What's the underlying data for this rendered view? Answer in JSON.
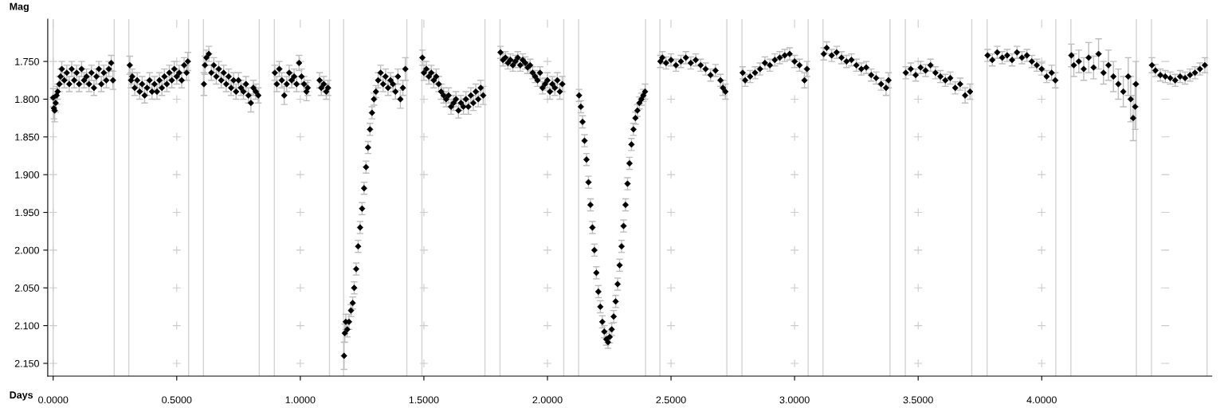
{
  "chart_data": {
    "type": "scatter",
    "xlabel": "Days",
    "ylabel": "Mag",
    "xlim": [
      -0.022,
      4.688
    ],
    "ylim": [
      2.167,
      1.694
    ],
    "xticks": [
      {
        "value": 0,
        "label": "0.0000"
      },
      {
        "value": 0.5,
        "label": "0.5000"
      },
      {
        "value": 1,
        "label": "1.0000"
      },
      {
        "value": 1.5,
        "label": "1.5000"
      },
      {
        "value": 2,
        "label": "2.0000"
      },
      {
        "value": 2.5,
        "label": "2.5000"
      },
      {
        "value": 3,
        "label": "3.0000"
      },
      {
        "value": 3.5,
        "label": "3.5000"
      },
      {
        "value": 4,
        "label": "4.0000"
      }
    ],
    "yticks": [
      {
        "value": 1.75,
        "label": "1.750"
      },
      {
        "value": 1.8,
        "label": "1.800"
      },
      {
        "value": 1.85,
        "label": "1.850"
      },
      {
        "value": 1.9,
        "label": "1.900"
      },
      {
        "value": 1.95,
        "label": "1.950"
      },
      {
        "value": 2.0,
        "label": "2.000"
      },
      {
        "value": 2.05,
        "label": "2.050"
      },
      {
        "value": 2.1,
        "label": "2.100"
      },
      {
        "value": 2.15,
        "label": "2.150"
      }
    ],
    "grid": true,
    "marker": "diamond",
    "ref_lines": [
      {
        "axis": "x",
        "value": 0.0,
        "color": "#d3d3d3"
      },
      {
        "axis": "x",
        "value": 0.247,
        "color": "#d3d3d3"
      },
      {
        "axis": "x",
        "value": 0.306,
        "color": "#d3d3d3"
      },
      {
        "axis": "x",
        "value": 0.548,
        "color": "#d3d3d3"
      },
      {
        "axis": "x",
        "value": 0.608,
        "color": "#d3d3d3"
      },
      {
        "axis": "x",
        "value": 0.834,
        "color": "#d3d3d3"
      },
      {
        "axis": "x",
        "value": 0.895,
        "color": "#d3d3d3"
      },
      {
        "axis": "x",
        "value": 1.118,
        "color": "#d3d3d3"
      },
      {
        "axis": "x",
        "value": 1.175,
        "color": "#d3d3d3"
      },
      {
        "axis": "x",
        "value": 1.431,
        "color": "#d3d3d3"
      },
      {
        "axis": "x",
        "value": 1.492,
        "color": "#d3d3d3"
      },
      {
        "axis": "x",
        "value": 1.747,
        "color": "#d3d3d3"
      },
      {
        "axis": "x",
        "value": 1.808,
        "color": "#d3d3d3"
      },
      {
        "axis": "x",
        "value": 2.066,
        "color": "#d3d3d3"
      },
      {
        "axis": "x",
        "value": 2.126,
        "color": "#d3d3d3"
      },
      {
        "axis": "x",
        "value": 2.397,
        "color": "#d3d3d3"
      },
      {
        "axis": "x",
        "value": 2.455,
        "color": "#d3d3d3"
      },
      {
        "axis": "x",
        "value": 2.726,
        "color": "#d3d3d3"
      },
      {
        "axis": "x",
        "value": 2.787,
        "color": "#d3d3d3"
      },
      {
        "axis": "x",
        "value": 3.055,
        "color": "#d3d3d3"
      },
      {
        "axis": "x",
        "value": 3.115,
        "color": "#d3d3d3"
      },
      {
        "axis": "x",
        "value": 3.386,
        "color": "#d3d3d3"
      },
      {
        "axis": "x",
        "value": 3.448,
        "color": "#d3d3d3"
      },
      {
        "axis": "x",
        "value": 3.717,
        "color": "#d3d3d3"
      },
      {
        "axis": "x",
        "value": 3.779,
        "color": "#d3d3d3"
      },
      {
        "axis": "x",
        "value": 4.057,
        "color": "#d3d3d3"
      },
      {
        "axis": "x",
        "value": 4.118,
        "color": "#d3d3d3"
      },
      {
        "axis": "x",
        "value": 4.383,
        "color": "#d3d3d3"
      },
      {
        "axis": "x",
        "value": 4.444,
        "color": "#d3d3d3"
      },
      {
        "axis": "x",
        "value": 4.669,
        "color": "#d3d3d3"
      }
    ],
    "series": [
      {
        "color": "#000000",
        "x": [
          0.0,
          0.003,
          0.006,
          0.01,
          0.014,
          0.018,
          0.025,
          0.03,
          0.035,
          0.045,
          0.055,
          0.065,
          0.075,
          0.085,
          0.095,
          0.105,
          0.115,
          0.125,
          0.135,
          0.145,
          0.155,
          0.165,
          0.175,
          0.185,
          0.195,
          0.205,
          0.215,
          0.225,
          0.235,
          0.242,
          0.31,
          0.315,
          0.32,
          0.33,
          0.34,
          0.35,
          0.36,
          0.37,
          0.38,
          0.39,
          0.4,
          0.41,
          0.42,
          0.43,
          0.44,
          0.45,
          0.46,
          0.47,
          0.48,
          0.49,
          0.5,
          0.51,
          0.52,
          0.53,
          0.54,
          0.545,
          0.61,
          0.614,
          0.62,
          0.63,
          0.64,
          0.65,
          0.66,
          0.67,
          0.68,
          0.69,
          0.7,
          0.71,
          0.72,
          0.73,
          0.74,
          0.75,
          0.76,
          0.77,
          0.78,
          0.79,
          0.8,
          0.81,
          0.82,
          0.83,
          0.897,
          0.905,
          0.915,
          0.925,
          0.935,
          0.945,
          0.955,
          0.965,
          0.975,
          0.985,
          0.995,
          1.005,
          1.015,
          1.025,
          1.03,
          1.078,
          1.085,
          1.095,
          1.105,
          1.112,
          1.177,
          1.18,
          1.184,
          1.19,
          1.197,
          1.205,
          1.212,
          1.218,
          1.226,
          1.234,
          1.242,
          1.25,
          1.258,
          1.266,
          1.274,
          1.282,
          1.29,
          1.298,
          1.306,
          1.315,
          1.325,
          1.335,
          1.345,
          1.355,
          1.365,
          1.375,
          1.385,
          1.395,
          1.405,
          1.415,
          1.425,
          1.494,
          1.5,
          1.51,
          1.52,
          1.53,
          1.54,
          1.55,
          1.56,
          1.57,
          1.58,
          1.59,
          1.6,
          1.61,
          1.62,
          1.63,
          1.64,
          1.65,
          1.66,
          1.67,
          1.68,
          1.69,
          1.7,
          1.71,
          1.72,
          1.73,
          1.74,
          1.81,
          1.82,
          1.83,
          1.84,
          1.85,
          1.86,
          1.87,
          1.88,
          1.89,
          1.9,
          1.91,
          1.92,
          1.93,
          1.94,
          1.95,
          1.96,
          1.97,
          1.98,
          1.99,
          2.0,
          2.01,
          2.02,
          2.03,
          2.04,
          2.05,
          2.06,
          2.128,
          2.135,
          2.142,
          2.15,
          2.158,
          2.166,
          2.174,
          2.182,
          2.19,
          2.198,
          2.206,
          2.214,
          2.222,
          2.23,
          2.238,
          2.245,
          2.252,
          2.26,
          2.268,
          2.276,
          2.284,
          2.292,
          2.3,
          2.308,
          2.316,
          2.324,
          2.332,
          2.34,
          2.348,
          2.356,
          2.364,
          2.372,
          2.38,
          2.388,
          2.395,
          2.457,
          2.465,
          2.48,
          2.5,
          2.52,
          2.54,
          2.56,
          2.58,
          2.6,
          2.62,
          2.64,
          2.66,
          2.68,
          2.7,
          2.71,
          2.72,
          2.79,
          2.8,
          2.82,
          2.84,
          2.86,
          2.88,
          2.9,
          2.92,
          2.94,
          2.96,
          2.98,
          3.0,
          3.02,
          3.04,
          3.05,
          3.118,
          3.13,
          3.15,
          3.17,
          3.19,
          3.21,
          3.23,
          3.25,
          3.27,
          3.29,
          3.31,
          3.33,
          3.35,
          3.37,
          3.38,
          3.45,
          3.47,
          3.49,
          3.51,
          3.53,
          3.55,
          3.57,
          3.59,
          3.61,
          3.63,
          3.65,
          3.67,
          3.69,
          3.71,
          3.781,
          3.8,
          3.82,
          3.84,
          3.86,
          3.88,
          3.9,
          3.92,
          3.94,
          3.96,
          3.98,
          4.0,
          4.02,
          4.04,
          4.055,
          4.12,
          4.13,
          4.15,
          4.17,
          4.19,
          4.21,
          4.23,
          4.25,
          4.27,
          4.29,
          4.31,
          4.33,
          4.35,
          4.36,
          4.37,
          4.378,
          4.381,
          4.446,
          4.46,
          4.48,
          4.5,
          4.52,
          4.54,
          4.56,
          4.58,
          4.6,
          4.62,
          4.64,
          4.66
        ],
        "values": [
          1.798,
          1.812,
          1.815,
          1.805,
          1.795,
          1.79,
          1.78,
          1.77,
          1.76,
          1.775,
          1.765,
          1.78,
          1.76,
          1.775,
          1.765,
          1.78,
          1.76,
          1.775,
          1.77,
          1.78,
          1.765,
          1.785,
          1.77,
          1.76,
          1.78,
          1.765,
          1.775,
          1.76,
          1.752,
          1.775,
          1.755,
          1.775,
          1.77,
          1.785,
          1.775,
          1.79,
          1.78,
          1.795,
          1.785,
          1.775,
          1.79,
          1.78,
          1.79,
          1.775,
          1.785,
          1.77,
          1.78,
          1.765,
          1.775,
          1.76,
          1.77,
          1.765,
          1.775,
          1.755,
          1.765,
          1.75,
          1.78,
          1.755,
          1.745,
          1.74,
          1.765,
          1.755,
          1.77,
          1.76,
          1.775,
          1.765,
          1.78,
          1.77,
          1.785,
          1.775,
          1.79,
          1.775,
          1.785,
          1.79,
          1.78,
          1.795,
          1.805,
          1.785,
          1.79,
          1.795,
          1.765,
          1.78,
          1.76,
          1.775,
          1.795,
          1.78,
          1.765,
          1.775,
          1.77,
          1.78,
          1.752,
          1.77,
          1.78,
          1.79,
          1.785,
          1.775,
          1.785,
          1.78,
          1.79,
          1.785,
          2.14,
          2.11,
          2.095,
          2.105,
          2.095,
          2.08,
          2.07,
          2.05,
          2.025,
          1.995,
          1.97,
          1.945,
          1.918,
          1.89,
          1.864,
          1.84,
          1.818,
          1.8,
          1.79,
          1.775,
          1.765,
          1.78,
          1.77,
          1.785,
          1.775,
          1.78,
          1.79,
          1.77,
          1.8,
          1.785,
          1.76,
          1.745,
          1.765,
          1.76,
          1.77,
          1.765,
          1.775,
          1.77,
          1.78,
          1.79,
          1.795,
          1.8,
          1.795,
          1.81,
          1.805,
          1.8,
          1.815,
          1.805,
          1.81,
          1.8,
          1.81,
          1.795,
          1.805,
          1.79,
          1.8,
          1.785,
          1.795,
          1.738,
          1.748,
          1.745,
          1.752,
          1.748,
          1.755,
          1.75,
          1.745,
          1.755,
          1.748,
          1.752,
          1.758,
          1.755,
          1.765,
          1.77,
          1.775,
          1.765,
          1.785,
          1.78,
          1.775,
          1.79,
          1.78,
          1.785,
          1.775,
          1.79,
          1.78,
          1.795,
          1.81,
          1.83,
          1.855,
          1.88,
          1.91,
          1.94,
          1.97,
          2.0,
          2.03,
          2.055,
          2.075,
          2.095,
          2.108,
          2.118,
          2.122,
          2.115,
          2.105,
          2.088,
          2.068,
          2.045,
          2.02,
          1.995,
          1.968,
          1.94,
          1.912,
          1.885,
          1.86,
          1.84,
          1.825,
          1.815,
          1.805,
          1.8,
          1.795,
          1.79,
          1.75,
          1.745,
          1.752,
          1.748,
          1.755,
          1.75,
          1.745,
          1.752,
          1.748,
          1.755,
          1.76,
          1.768,
          1.762,
          1.775,
          1.785,
          1.79,
          1.765,
          1.775,
          1.77,
          1.765,
          1.76,
          1.752,
          1.755,
          1.748,
          1.745,
          1.742,
          1.74,
          1.75,
          1.755,
          1.775,
          1.76,
          1.74,
          1.732,
          1.742,
          1.738,
          1.745,
          1.75,
          1.748,
          1.755,
          1.76,
          1.758,
          1.768,
          1.772,
          1.78,
          1.785,
          1.775,
          1.765,
          1.76,
          1.768,
          1.758,
          1.762,
          1.755,
          1.765,
          1.77,
          1.775,
          1.772,
          1.785,
          1.78,
          1.795,
          1.79,
          1.742,
          1.748,
          1.738,
          1.745,
          1.742,
          1.748,
          1.738,
          1.745,
          1.742,
          1.75,
          1.755,
          1.76,
          1.77,
          1.765,
          1.775,
          1.742,
          1.755,
          1.75,
          1.76,
          1.745,
          1.758,
          1.74,
          1.765,
          1.755,
          1.77,
          1.78,
          1.79,
          1.77,
          1.8,
          1.825,
          1.81,
          1.78,
          1.755,
          1.762,
          1.768,
          1.77,
          1.772,
          1.775,
          1.77,
          1.772,
          1.768,
          1.765,
          1.76,
          1.755
        ],
        "errors": [
          0.012,
          0.014,
          0.015,
          0.012,
          0.012,
          0.01,
          0.01,
          0.01,
          0.01,
          0.01,
          0.01,
          0.01,
          0.01,
          0.01,
          0.01,
          0.01,
          0.01,
          0.01,
          0.01,
          0.01,
          0.01,
          0.01,
          0.01,
          0.01,
          0.01,
          0.01,
          0.01,
          0.01,
          0.01,
          0.012,
          0.012,
          0.01,
          0.01,
          0.01,
          0.01,
          0.01,
          0.01,
          0.01,
          0.01,
          0.01,
          0.01,
          0.01,
          0.01,
          0.01,
          0.01,
          0.01,
          0.01,
          0.01,
          0.01,
          0.01,
          0.01,
          0.01,
          0.01,
          0.01,
          0.01,
          0.012,
          0.015,
          0.012,
          0.01,
          0.01,
          0.01,
          0.01,
          0.01,
          0.01,
          0.01,
          0.01,
          0.01,
          0.01,
          0.01,
          0.01,
          0.01,
          0.01,
          0.01,
          0.01,
          0.01,
          0.01,
          0.012,
          0.01,
          0.01,
          0.01,
          0.01,
          0.01,
          0.01,
          0.01,
          0.012,
          0.01,
          0.01,
          0.01,
          0.01,
          0.01,
          0.01,
          0.01,
          0.01,
          0.012,
          0.01,
          0.01,
          0.01,
          0.01,
          0.01,
          0.01,
          0.018,
          0.012,
          0.01,
          0.01,
          0.01,
          0.008,
          0.008,
          0.008,
          0.008,
          0.008,
          0.008,
          0.008,
          0.008,
          0.008,
          0.008,
          0.008,
          0.008,
          0.008,
          0.008,
          0.01,
          0.01,
          0.01,
          0.01,
          0.01,
          0.01,
          0.01,
          0.01,
          0.01,
          0.012,
          0.01,
          0.015,
          0.01,
          0.01,
          0.01,
          0.01,
          0.01,
          0.01,
          0.01,
          0.01,
          0.01,
          0.01,
          0.01,
          0.01,
          0.01,
          0.01,
          0.01,
          0.01,
          0.01,
          0.01,
          0.01,
          0.01,
          0.01,
          0.01,
          0.01,
          0.01,
          0.01,
          0.012,
          0.008,
          0.008,
          0.008,
          0.008,
          0.008,
          0.008,
          0.008,
          0.008,
          0.008,
          0.008,
          0.008,
          0.008,
          0.008,
          0.008,
          0.008,
          0.008,
          0.008,
          0.008,
          0.008,
          0.01,
          0.01,
          0.01,
          0.01,
          0.01,
          0.01,
          0.01,
          0.008,
          0.008,
          0.008,
          0.008,
          0.008,
          0.008,
          0.008,
          0.008,
          0.008,
          0.008,
          0.008,
          0.008,
          0.008,
          0.008,
          0.008,
          0.008,
          0.008,
          0.008,
          0.008,
          0.008,
          0.008,
          0.008,
          0.008,
          0.008,
          0.008,
          0.008,
          0.008,
          0.008,
          0.008,
          0.008,
          0.008,
          0.008,
          0.008,
          0.008,
          0.01,
          0.008,
          0.008,
          0.008,
          0.008,
          0.008,
          0.008,
          0.008,
          0.008,
          0.008,
          0.008,
          0.008,
          0.008,
          0.008,
          0.008,
          0.01,
          0.01,
          0.008,
          0.008,
          0.008,
          0.008,
          0.008,
          0.008,
          0.008,
          0.008,
          0.008,
          0.008,
          0.008,
          0.008,
          0.008,
          0.01,
          0.01,
          0.008,
          0.008,
          0.008,
          0.008,
          0.008,
          0.008,
          0.008,
          0.008,
          0.008,
          0.008,
          0.008,
          0.008,
          0.008,
          0.01,
          0.01,
          0.008,
          0.008,
          0.008,
          0.008,
          0.008,
          0.008,
          0.008,
          0.008,
          0.008,
          0.008,
          0.008,
          0.008,
          0.01,
          0.01,
          0.008,
          0.008,
          0.008,
          0.008,
          0.008,
          0.008,
          0.008,
          0.008,
          0.008,
          0.008,
          0.008,
          0.008,
          0.008,
          0.01,
          0.01,
          0.015,
          0.015,
          0.015,
          0.015,
          0.02,
          0.015,
          0.02,
          0.015,
          0.02,
          0.02,
          0.02,
          0.02,
          0.025,
          0.03,
          0.03,
          0.03,
          0.03,
          0.01,
          0.008,
          0.008,
          0.008,
          0.008,
          0.008,
          0.008,
          0.008,
          0.008,
          0.008,
          0.008,
          0.01
        ]
      }
    ]
  }
}
